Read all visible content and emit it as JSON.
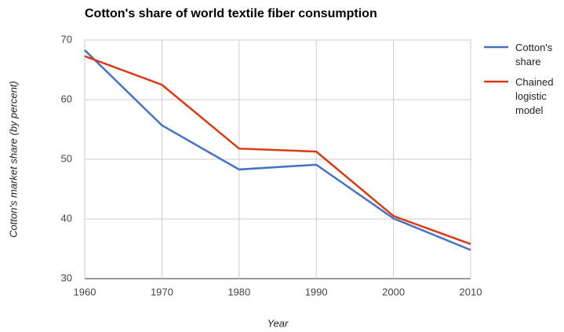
{
  "chart_data": {
    "type": "line",
    "title": "Cotton's share of world textile fiber consumption",
    "x_label": "Year",
    "y_label": "Cotton's market share (by percent)",
    "x": [
      1960,
      1970,
      1980,
      1990,
      2000,
      2010
    ],
    "series": [
      {
        "name": "Cotton's share",
        "color": "#4472c4",
        "values": [
          68.3,
          55.7,
          48.3,
          49.1,
          40.1,
          34.8
        ]
      },
      {
        "name": "Chained logistic model",
        "color": "#dc3912",
        "values": [
          67.3,
          62.5,
          51.8,
          51.3,
          40.5,
          35.8
        ]
      }
    ],
    "xlim": [
      1960,
      2010
    ],
    "xticks": [
      1960,
      1970,
      1980,
      1990,
      2000,
      2010
    ],
    "ylim": [
      30,
      70
    ],
    "yticks": [
      30,
      40,
      50,
      60,
      70
    ],
    "grid": true,
    "legend": "right"
  }
}
